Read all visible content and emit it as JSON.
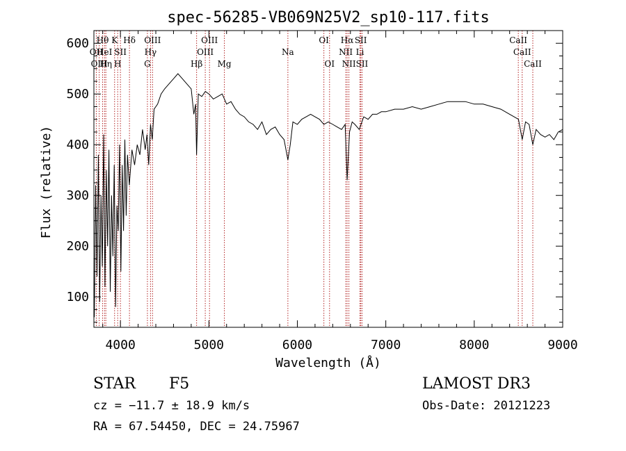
{
  "chart_data": {
    "type": "line",
    "title": "spec-56285-VB069N25V2_sp10-117.fits",
    "xlabel": "Wavelength (Å)",
    "ylabel": "Flux (relative)",
    "xlim": [
      3700,
      9000
    ],
    "ylim": [
      40,
      625
    ],
    "x_ticks": [
      4000,
      5000,
      6000,
      7000,
      8000,
      9000
    ],
    "y_ticks": [
      100,
      200,
      300,
      400,
      500,
      600
    ],
    "grid": false,
    "series": [
      {
        "x": [
          3705,
          3720,
          3735,
          3750,
          3765,
          3780,
          3795,
          3810,
          3825,
          3840,
          3855,
          3870,
          3885,
          3900,
          3915,
          3930,
          3945,
          3960,
          3975,
          3990,
          4005,
          4020,
          4035,
          4050,
          4065,
          4080,
          4100,
          4130,
          4160,
          4190,
          4220,
          4250,
          4280,
          4300,
          4320,
          4340,
          4360,
          4380,
          4420,
          4460,
          4500,
          4550,
          4600,
          4650,
          4700,
          4750,
          4800,
          4830,
          4850,
          4861,
          4880,
          4920,
          4960,
          5000,
          5050,
          5100,
          5150,
          5200,
          5250,
          5300,
          5350,
          5400,
          5450,
          5500,
          5550,
          5600,
          5650,
          5700,
          5750,
          5800,
          5850,
          5893,
          5920,
          5950,
          6000,
          6050,
          6100,
          6150,
          6200,
          6250,
          6300,
          6350,
          6400,
          6450,
          6500,
          6540,
          6563,
          6590,
          6620,
          6650,
          6700,
          6750,
          6800,
          6850,
          6900,
          6950,
          7000,
          7100,
          7200,
          7300,
          7400,
          7500,
          7600,
          7700,
          7800,
          7900,
          8000,
          8100,
          8200,
          8300,
          8400,
          8450,
          8500,
          8542,
          8580,
          8620,
          8662,
          8700,
          8750,
          8800,
          8850,
          8900,
          8950,
          9000
        ],
        "values": [
          60,
          320,
          140,
          380,
          90,
          300,
          160,
          420,
          120,
          350,
          200,
          390,
          110,
          300,
          180,
          360,
          80,
          280,
          230,
          400,
          150,
          360,
          230,
          410,
          260,
          380,
          320,
          390,
          360,
          400,
          380,
          430,
          390,
          420,
          360,
          440,
          410,
          470,
          480,
          500,
          510,
          520,
          530,
          540,
          530,
          520,
          510,
          460,
          480,
          380,
          500,
          495,
          505,
          500,
          490,
          495,
          500,
          480,
          485,
          470,
          460,
          455,
          445,
          440,
          430,
          445,
          420,
          430,
          435,
          420,
          410,
          370,
          400,
          445,
          440,
          450,
          455,
          460,
          455,
          450,
          440,
          445,
          440,
          435,
          430,
          440,
          330,
          425,
          445,
          440,
          430,
          455,
          450,
          460,
          460,
          465,
          465,
          470,
          470,
          475,
          470,
          475,
          480,
          485,
          485,
          485,
          480,
          480,
          475,
          470,
          460,
          455,
          450,
          410,
          445,
          440,
          400,
          430,
          420,
          415,
          420,
          410,
          425,
          430
        ]
      }
    ],
    "lines": [
      {
        "label": "Hθ",
        "x": 3798,
        "row": 1
      },
      {
        "label": "OII",
        "x": 3727,
        "row": 2
      },
      {
        "label": "OIII",
        "x": 3760,
        "row": 3
      },
      {
        "label": "HeI",
        "x": 3820,
        "row": 2
      },
      {
        "label": "Hη",
        "x": 3835,
        "row": 3
      },
      {
        "label": "K",
        "x": 3934,
        "row": 1
      },
      {
        "label": "SII",
        "x": 4000,
        "row": 2
      },
      {
        "label": "H",
        "x": 3969,
        "row": 3
      },
      {
        "label": "Hδ",
        "x": 4102,
        "row": 1
      },
      {
        "label": "OIII",
        "x": 4363,
        "row": 1
      },
      {
        "label": "Hγ",
        "x": 4340,
        "row": 2
      },
      {
        "label": "G",
        "x": 4305,
        "row": 3
      },
      {
        "label": "OIII",
        "x": 5007,
        "row": 1
      },
      {
        "label": "OIII",
        "x": 4959,
        "row": 2
      },
      {
        "label": "Hβ",
        "x": 4861,
        "row": 3
      },
      {
        "label": "Mg",
        "x": 5175,
        "row": 3
      },
      {
        "label": "Na",
        "x": 5893,
        "row": 2
      },
      {
        "label": "OI",
        "x": 6300,
        "row": 1
      },
      {
        "label": "OI",
        "x": 6364,
        "row": 3
      },
      {
        "label": "Hα",
        "x": 6563,
        "row": 1
      },
      {
        "label": "SII",
        "x": 6717,
        "row": 1
      },
      {
        "label": "NII",
        "x": 6548,
        "row": 2
      },
      {
        "label": "Li",
        "x": 6708,
        "row": 2
      },
      {
        "label": "NII",
        "x": 6583,
        "row": 3
      },
      {
        "label": "SII",
        "x": 6731,
        "row": 3
      },
      {
        "label": "CaII",
        "x": 8498,
        "row": 1
      },
      {
        "label": "CaII",
        "x": 8542,
        "row": 2
      },
      {
        "label": "CaII",
        "x": 8662,
        "row": 3
      }
    ],
    "line_color": "#b22222"
  },
  "info": {
    "object_type": "STAR",
    "subclass": "F5",
    "survey": "LAMOST DR3",
    "redshift": "cz = −11.7 ± 18.9 km/s",
    "obs_date": "Obs-Date: 20121223",
    "coords": "RA =  67.54450, DEC =  24.75967"
  }
}
